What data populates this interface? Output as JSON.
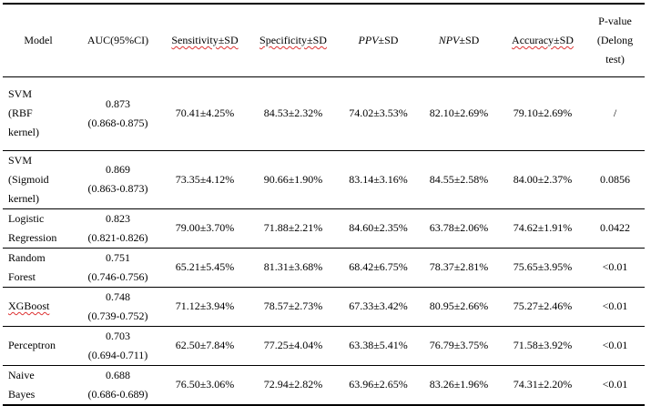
{
  "table": {
    "headers": {
      "model": "Model",
      "auc": "AUC(95%CI)",
      "sensitivity": "Sensitivity±SD",
      "specificity": "Specificity±SD",
      "ppv_italic": "PPV",
      "ppv_rest": "±SD",
      "npv_italic": "NPV",
      "npv_rest": "±SD",
      "accuracy": "Accuracy±SD",
      "pvalue_1": "P-value",
      "pvalue_2": "(Delong",
      "pvalue_3": "test)"
    },
    "rows": [
      {
        "model_lines": [
          "SVM",
          "(RBF",
          "kernel)"
        ],
        "auc": "0.873",
        "ci": "(0.868-0.875)",
        "sensitivity": "70.41±4.25%",
        "specificity": "84.53±2.32%",
        "ppv": "74.02±3.53%",
        "npv": "82.10±2.69%",
        "accuracy": "79.10±2.69%",
        "pvalue": "/"
      },
      {
        "model_lines": [
          "SVM",
          "(Sigmoid",
          "kernel)"
        ],
        "auc": "0.869",
        "ci": "(0.863-0.873)",
        "sensitivity": "73.35±4.12%",
        "specificity": "90.66±1.90%",
        "ppv": "83.14±3.16%",
        "npv": "84.55±2.58%",
        "accuracy": "84.00±2.37%",
        "pvalue": "0.0856"
      },
      {
        "model_lines": [
          "Logistic",
          "Regression"
        ],
        "auc": "0.823",
        "ci": "(0.821-0.826)",
        "sensitivity": "79.00±3.70%",
        "specificity": "71.88±2.21%",
        "ppv": "84.60±2.35%",
        "npv": "63.78±2.06%",
        "accuracy": "74.62±1.91%",
        "pvalue": "0.0422"
      },
      {
        "model_lines": [
          "Random",
          "Forest"
        ],
        "auc": "0.751",
        "ci": "(0.746-0.756)",
        "sensitivity": "65.21±5.45%",
        "specificity": "81.31±3.68%",
        "ppv": "68.42±6.75%",
        "npv": "78.37±2.81%",
        "accuracy": "75.65±3.95%",
        "pvalue": "<0.01"
      },
      {
        "model_lines": [
          "XGBoost"
        ],
        "auc": "0.748",
        "ci": "(0.739-0.752)",
        "sensitivity": "71.12±3.94%",
        "specificity": "78.57±2.73%",
        "ppv": "67.33±3.42%",
        "npv": "80.95±2.66%",
        "accuracy": "75.27±2.46%",
        "pvalue": "<0.01"
      },
      {
        "model_lines": [
          "Perceptron"
        ],
        "auc": "0.703",
        "ci": "(0.694-0.711)",
        "sensitivity": "62.50±7.84%",
        "specificity": "77.25±4.04%",
        "ppv": "63.38±5.41%",
        "npv": "76.79±3.75%",
        "accuracy": "71.58±3.92%",
        "pvalue": "<0.01"
      },
      {
        "model_lines": [
          "Naive",
          "Bayes"
        ],
        "auc": "0.688",
        "ci": "(0.686-0.689)",
        "sensitivity": "76.50±3.06%",
        "specificity": "72.94±2.82%",
        "ppv": "63.96±2.65%",
        "npv": "83.26±1.96%",
        "accuracy": "74.31±2.20%",
        "pvalue": "<0.01"
      }
    ]
  }
}
